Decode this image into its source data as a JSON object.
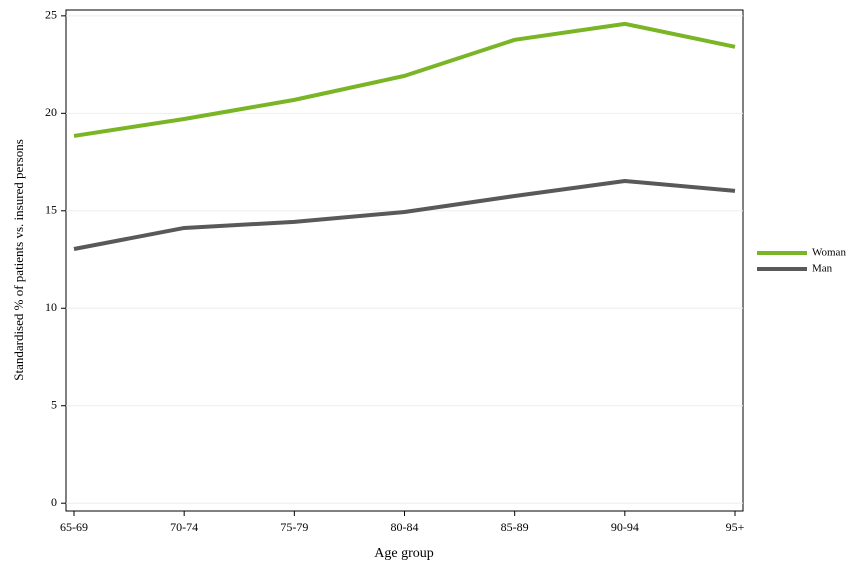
{
  "chart_data": {
    "type": "line",
    "x_label": "Age group",
    "y_label": "Standardised % of patients vs. insured persons",
    "categories": [
      "65-69",
      "70-74",
      "75-79",
      "80-84",
      "85-89",
      "90-94",
      "95+"
    ],
    "series": [
      {
        "name": "Woman",
        "color": "#7ab526",
        "values": [
          18.84,
          19.71,
          20.69,
          21.92,
          23.77,
          24.59,
          23.41
        ]
      },
      {
        "name": "Man",
        "color": "#595959",
        "values": [
          13.04,
          14.12,
          14.43,
          14.94,
          15.76,
          16.53,
          16.02
        ]
      }
    ],
    "ylim": [
      -0.4,
      25.3
    ],
    "yticks": [
      0,
      5,
      10,
      15,
      20,
      25
    ],
    "grid": true,
    "legend": "right"
  }
}
